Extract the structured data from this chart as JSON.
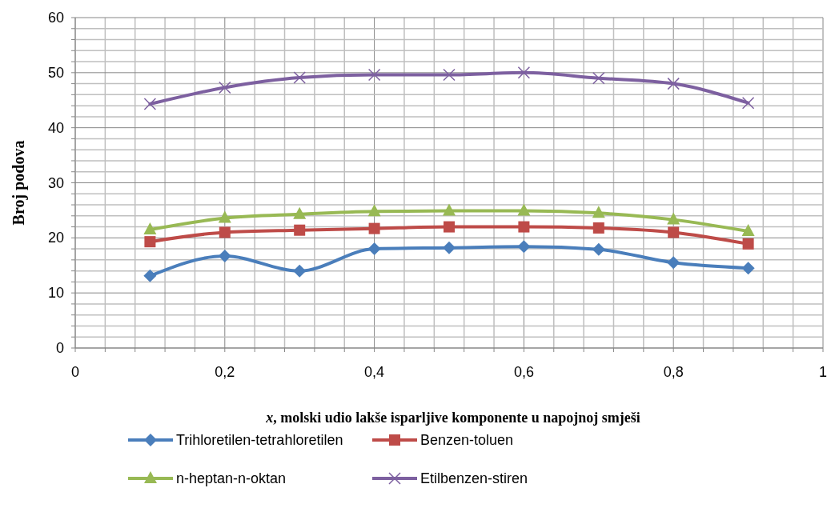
{
  "chart_data": {
    "type": "line",
    "xlabel": "x,  molski udio lakše isparljive komponente u napojnoj smješi",
    "ylabel": "Broj  podova",
    "x": [
      0.1,
      0.2,
      0.3,
      0.4,
      0.5,
      0.6,
      0.7,
      0.8,
      0.9
    ],
    "series": [
      {
        "name": "Trihloretilen-tetrahloretilen",
        "color": "#4a7ebb",
        "marker": "diamond",
        "values": [
          13.1,
          16.7,
          14,
          18,
          18.2,
          18.4,
          17.9,
          15.5,
          14.5
        ]
      },
      {
        "name": "Benzen-toluen",
        "color": "#be4b48",
        "marker": "square",
        "values": [
          19.3,
          21,
          21.4,
          21.7,
          22,
          22,
          21.8,
          21,
          18.9
        ]
      },
      {
        "name": "n-heptan-n-oktan",
        "color": "#98b954",
        "marker": "triangle",
        "values": [
          21.5,
          23.6,
          24.3,
          24.8,
          24.9,
          24.9,
          24.5,
          23.3,
          21.2
        ]
      },
      {
        "name": "Etilbenzen-stiren",
        "color": "#7d60a0",
        "marker": "cross",
        "values": [
          44.3,
          47.3,
          49.1,
          49.6,
          49.6,
          50,
          49,
          48,
          44.5
        ]
      }
    ],
    "xlim": [
      0,
      1
    ],
    "xticks": [
      0,
      {
        "value": 0.04,
        "label": null
      },
      {
        "value": 0.08,
        "label": null
      },
      {
        "value": 0.12,
        "label": null
      },
      {
        "value": 0.16,
        "label": null
      },
      {
        "value": 0.2,
        "label": "0,2"
      },
      {
        "value": 0.24,
        "label": null
      },
      {
        "value": 0.28,
        "label": null
      },
      {
        "value": 0.32,
        "label": null
      },
      {
        "value": 0.36,
        "label": null
      },
      {
        "value": 0.4,
        "label": "0,4"
      },
      {
        "value": 0.44,
        "label": null
      },
      {
        "value": 0.48,
        "label": null
      },
      {
        "value": 0.52,
        "label": null
      },
      {
        "value": 0.56,
        "label": null
      },
      {
        "value": 0.6,
        "label": "0,6"
      },
      {
        "value": 0.64,
        "label": null
      },
      {
        "value": 0.68,
        "label": null
      },
      {
        "value": 0.72,
        "label": null
      },
      {
        "value": 0.76,
        "label": null
      },
      {
        "value": 0.8,
        "label": "0,8"
      },
      {
        "value": 0.84,
        "label": null
      },
      {
        "value": 0.88,
        "label": null
      },
      {
        "value": 0.92,
        "label": null
      },
      {
        "value": 0.96,
        "label": null
      },
      1
    ],
    "ylim": [
      0,
      60
    ],
    "yticks": [
      0,
      {
        "value": 2,
        "label": null
      },
      {
        "value": 4,
        "label": null
      },
      {
        "value": 6,
        "label": null
      },
      {
        "value": 8,
        "label": null
      },
      10,
      {
        "value": 12,
        "label": null
      },
      {
        "value": 14,
        "label": null
      },
      {
        "value": 16,
        "label": null
      },
      {
        "value": 18,
        "label": null
      },
      20,
      {
        "value": 22,
        "label": null
      },
      {
        "value": 24,
        "label": null
      },
      {
        "value": 26,
        "label": null
      },
      {
        "value": 28,
        "label": null
      },
      30,
      {
        "value": 32,
        "label": null
      },
      {
        "value": 34,
        "label": null
      },
      {
        "value": 36,
        "label": null
      },
      {
        "value": 38,
        "label": null
      },
      40,
      {
        "value": 42,
        "label": null
      },
      {
        "value": 44,
        "label": null
      },
      {
        "value": 46,
        "label": null
      },
      {
        "value": 48,
        "label": null
      },
      50,
      {
        "value": 52,
        "label": null
      },
      {
        "value": 54,
        "label": null
      },
      {
        "value": 56,
        "label": null
      },
      {
        "value": 58,
        "label": null
      },
      60
    ],
    "grid": true,
    "legend": "bottom",
    "line_style": "solid"
  }
}
